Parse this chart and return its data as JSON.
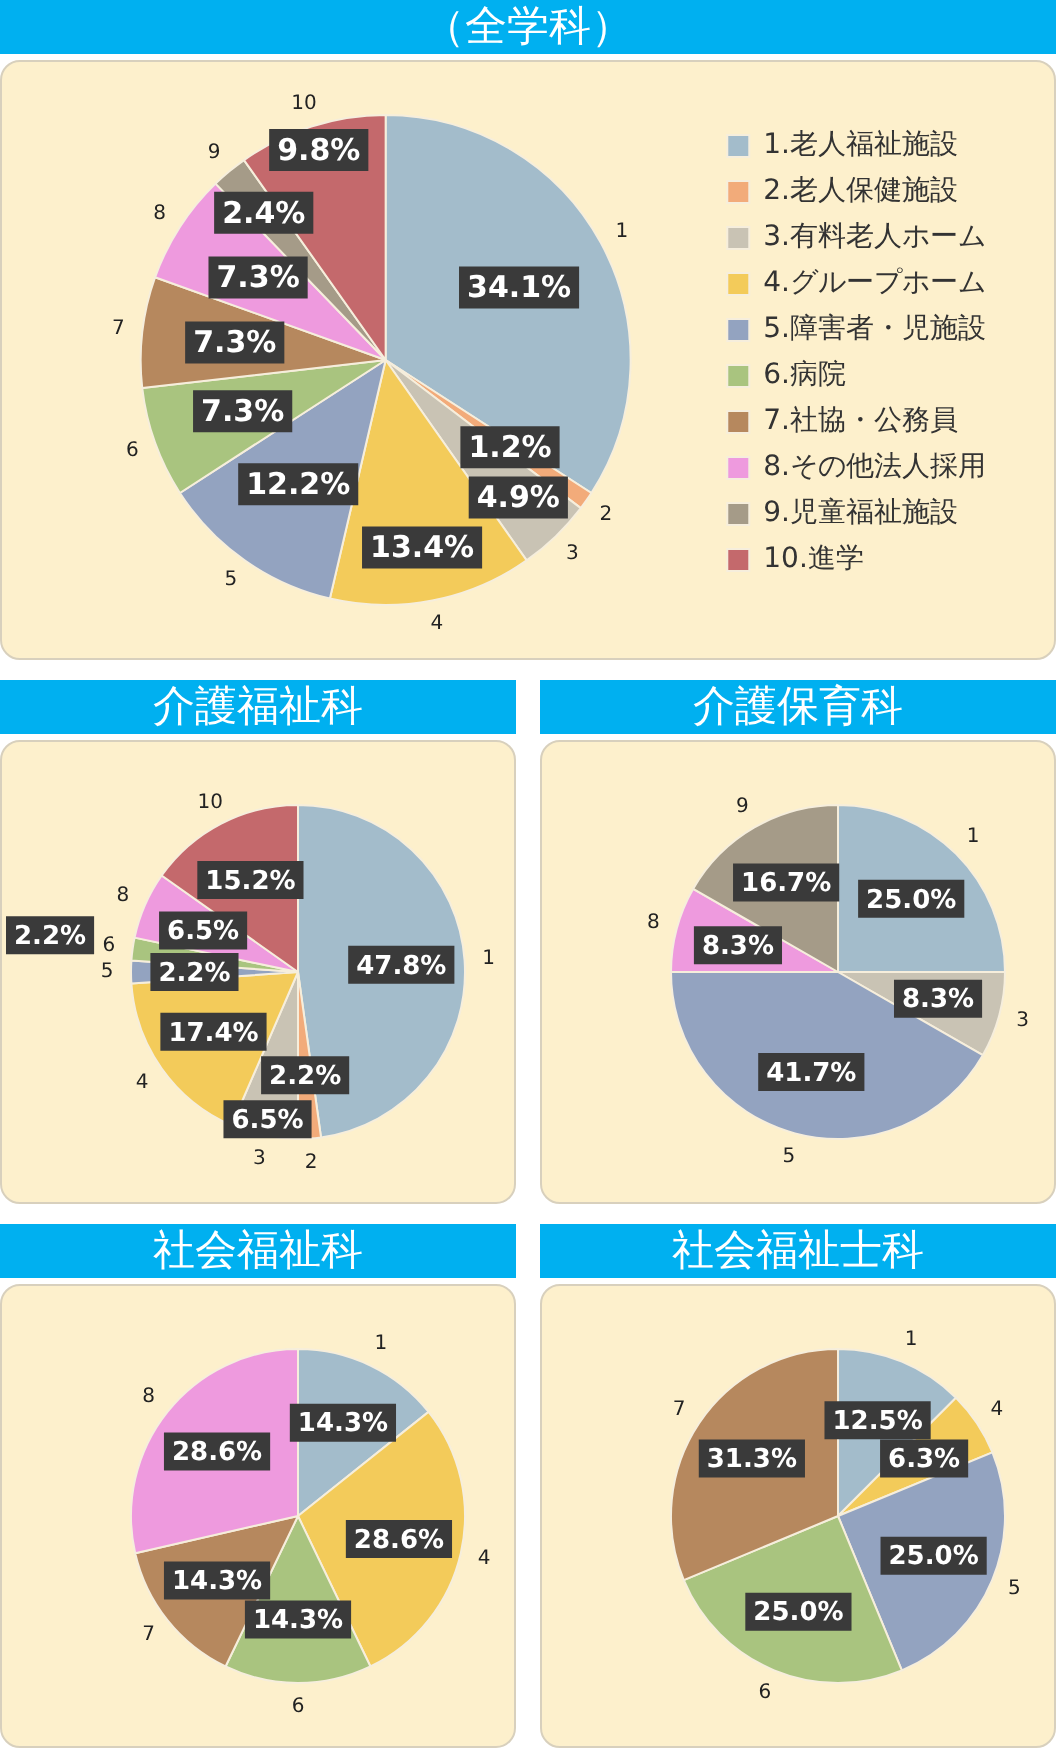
{
  "chart_data": [
    {
      "type": "pie",
      "title": "（全学科）",
      "categories": [
        "1.老人福祉施設",
        "2.老人保健施設",
        "3.有料老人ホーム",
        "4.グループホーム",
        "5.障害者・児施設",
        "6.病院",
        "7.社協・公務員",
        "8.その他法人採用",
        "9.児童福祉施設",
        "10.進学"
      ],
      "values": [
        34.1,
        1.2,
        4.9,
        13.4,
        12.2,
        7.3,
        7.3,
        7.3,
        2.4,
        9.8
      ],
      "value_labels": [
        "34.1%",
        "1.2%",
        "4.9%",
        "13.4%",
        "12.2%",
        "7.3%",
        "7.3%",
        "7.3%",
        "2.4%",
        "9.8%"
      ],
      "colors": [
        "#a3bccb",
        "#f2ab7a",
        "#c9c3b4",
        "#f3cb5a",
        "#93a3c0",
        "#a9c47f",
        "#b6885e",
        "#ee9ade",
        "#a59b88",
        "#c4696c"
      ],
      "legend": "right",
      "annotations": [
        {
          "text": "1",
          "x": "1.老人福祉施設"
        },
        {
          "text": "2",
          "x": "2.老人保健施設"
        },
        {
          "text": "3",
          "x": "3.有料老人ホーム"
        },
        {
          "text": "4",
          "x": "4.グループホーム"
        },
        {
          "text": "5",
          "x": "5.障害者・児施設"
        },
        {
          "text": "6",
          "x": "6.病院"
        },
        {
          "text": "7",
          "x": "7.社協・公務員"
        },
        {
          "text": "8",
          "x": "8.その他法人採用"
        },
        {
          "text": "9",
          "x": "9.児童福祉施設"
        },
        {
          "text": "10",
          "x": "10.進学"
        }
      ]
    },
    {
      "type": "pie",
      "title": "介護福祉科",
      "categories": [
        "1",
        "2",
        "3",
        "4",
        "5",
        "6",
        "8",
        "10"
      ],
      "values": [
        47.8,
        2.2,
        6.5,
        17.4,
        2.2,
        2.2,
        6.5,
        15.2
      ],
      "value_labels": [
        "47.8%",
        "2.2%",
        "6.5%",
        "17.4%",
        "2.2%",
        "2.2%",
        "6.5%",
        "15.2%"
      ],
      "colors": [
        "#a3bccb",
        "#f2ab7a",
        "#c9c3b4",
        "#f3cb5a",
        "#93a3c0",
        "#a9c47f",
        "#ee9ade",
        "#c4696c"
      ]
    },
    {
      "type": "pie",
      "title": "介護保育科",
      "categories": [
        "1",
        "3",
        "5",
        "8",
        "9"
      ],
      "values": [
        25.0,
        8.3,
        41.7,
        8.3,
        16.7
      ],
      "value_labels": [
        "25.0%",
        "8.3%",
        "41.7%",
        "8.3%",
        "16.7%"
      ],
      "colors": [
        "#a3bccb",
        "#c9c3b4",
        "#93a3c0",
        "#ee9ade",
        "#a59b88"
      ]
    },
    {
      "type": "pie",
      "title": "社会福祉科",
      "categories": [
        "1",
        "4",
        "6",
        "7",
        "8"
      ],
      "values": [
        14.3,
        28.6,
        14.3,
        14.3,
        28.6
      ],
      "value_labels": [
        "14.3%",
        "28.6%",
        "14.3%",
        "14.3%",
        "28.6%"
      ],
      "colors": [
        "#a3bccb",
        "#f3cb5a",
        "#a9c47f",
        "#b6885e",
        "#ee9ade"
      ]
    },
    {
      "type": "pie",
      "title": "社会福祉士科",
      "categories": [
        "1",
        "4",
        "5",
        "6",
        "7"
      ],
      "values": [
        12.5,
        6.3,
        25.0,
        25.0,
        31.3
      ],
      "value_labels": [
        "12.5%",
        "6.3%",
        "25.0%",
        "25.0%",
        "31.3%"
      ],
      "colors": [
        "#a3bccb",
        "#f3cb5a",
        "#93a3c0",
        "#a9c47f",
        "#b6885e"
      ]
    }
  ]
}
